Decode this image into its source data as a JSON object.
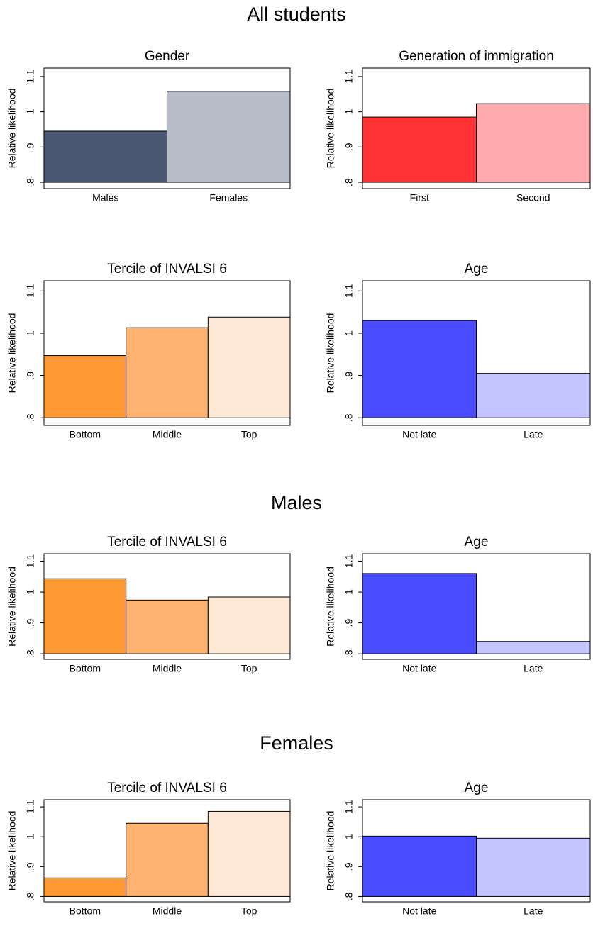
{
  "section_titles": [
    "All students",
    "Males",
    "Females"
  ],
  "chart_data": [
    {
      "type": "bar",
      "title": "Gender",
      "ylabel": "Relative likelihood",
      "categories": [
        "Males",
        "Females"
      ],
      "values": [
        0.945,
        1.058
      ],
      "colors": [
        "#4b5672",
        "#b8bcc8"
      ],
      "base": 0.8,
      "ylim": [
        0.782,
        1.124
      ],
      "yticks": [
        {
          "value": 0.8,
          "label": ".8"
        },
        {
          "value": 0.9,
          "label": ".9"
        },
        1,
        1.1
      ]
    },
    {
      "type": "bar",
      "title": "Generation of immigration",
      "ylabel": "Relative likelihood",
      "categories": [
        "First",
        "Second"
      ],
      "values": [
        0.985,
        1.023
      ],
      "colors": [
        "#ff3333",
        "#ffaaaf"
      ],
      "base": 0.8,
      "ylim": [
        0.782,
        1.124
      ],
      "yticks": [
        {
          "value": 0.8,
          "label": ".8"
        },
        {
          "value": 0.9,
          "label": ".9"
        },
        1,
        1.1
      ]
    },
    {
      "type": "bar",
      "title": "Tercile of INVALSI 6",
      "ylabel": "Relative likelihood",
      "categories": [
        "Bottom",
        "Middle",
        "Top"
      ],
      "values": [
        0.947,
        1.013,
        1.038
      ],
      "colors": [
        "#ff9933",
        "#ffb370",
        "#fde9d5"
      ],
      "base": 0.8,
      "ylim": [
        0.782,
        1.124
      ],
      "yticks": [
        {
          "value": 0.8,
          "label": ".8"
        },
        {
          "value": 0.9,
          "label": ".9"
        },
        1,
        1.1
      ]
    },
    {
      "type": "bar",
      "title": "Age",
      "ylabel": "Relative likelihood",
      "categories": [
        "Not late",
        "Late"
      ],
      "values": [
        1.03,
        0.905
      ],
      "colors": [
        "#4a4aff",
        "#c3c3ff"
      ],
      "base": 0.8,
      "ylim": [
        0.782,
        1.124
      ],
      "yticks": [
        {
          "value": 0.8,
          "label": ".8"
        },
        {
          "value": 0.9,
          "label": ".9"
        },
        1,
        1.1
      ]
    },
    {
      "type": "bar",
      "title": "Tercile of INVALSI 6",
      "ylabel": "Relative likelihood",
      "categories": [
        "Bottom",
        "Middle",
        "Top"
      ],
      "values": [
        1.043,
        0.974,
        0.984
      ],
      "colors": [
        "#ff9933",
        "#ffb370",
        "#fde9d5"
      ],
      "base": 0.8,
      "ylim": [
        0.782,
        1.124
      ],
      "yticks": [
        {
          "value": 0.8,
          "label": ".8"
        },
        {
          "value": 0.9,
          "label": ".9"
        },
        1,
        1.1
      ]
    },
    {
      "type": "bar",
      "title": "Age",
      "ylabel": "Relative likelihood",
      "categories": [
        "Not late",
        "Late"
      ],
      "values": [
        1.06,
        0.84
      ],
      "colors": [
        "#4a4aff",
        "#c3c3ff"
      ],
      "base": 0.8,
      "ylim": [
        0.782,
        1.124
      ],
      "yticks": [
        {
          "value": 0.8,
          "label": ".8"
        },
        {
          "value": 0.9,
          "label": ".9"
        },
        1,
        1.1
      ]
    },
    {
      "type": "bar",
      "title": "Tercile of INVALSI 6",
      "ylabel": "Relative likelihood",
      "categories": [
        "Bottom",
        "Middle",
        "Top"
      ],
      "values": [
        0.862,
        1.045,
        1.085
      ],
      "colors": [
        "#ff9933",
        "#ffb370",
        "#fde9d5"
      ],
      "base": 0.8,
      "ylim": [
        0.782,
        1.124
      ],
      "yticks": [
        {
          "value": 0.8,
          "label": ".8"
        },
        {
          "value": 0.9,
          "label": ".9"
        },
        1,
        1.1
      ]
    },
    {
      "type": "bar",
      "title": "Age",
      "ylabel": "Relative likelihood",
      "categories": [
        "Not late",
        "Late"
      ],
      "values": [
        1.002,
        0.995
      ],
      "colors": [
        "#4a4aff",
        "#c3c3ff"
      ],
      "base": 0.8,
      "ylim": [
        0.782,
        1.124
      ],
      "yticks": [
        {
          "value": 0.8,
          "label": ".8"
        },
        {
          "value": 0.9,
          "label": ".9"
        },
        1,
        1.1
      ]
    }
  ]
}
